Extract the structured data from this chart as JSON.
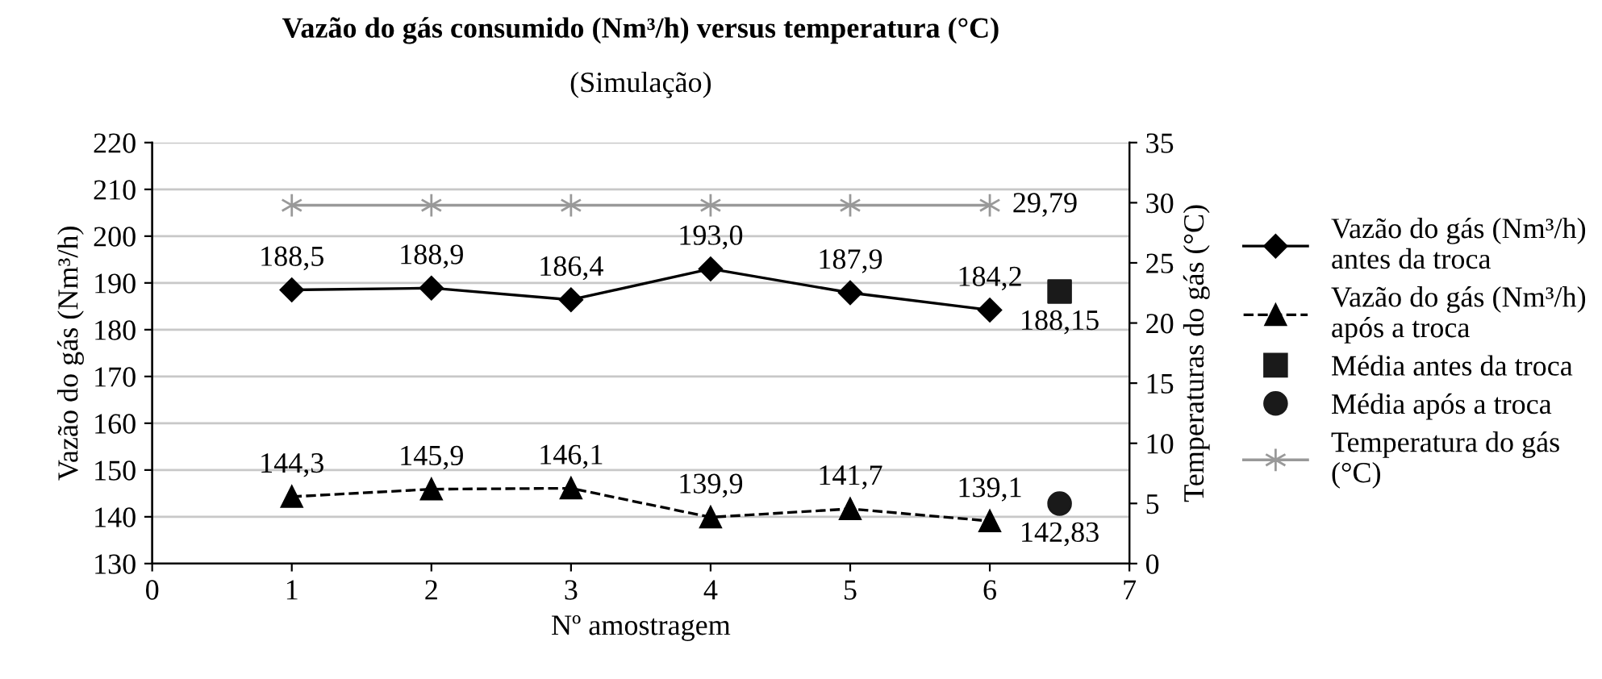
{
  "chart_data": {
    "type": "line",
    "title": "Vazão do gás consumido (Nm³/h) versus temperatura (°C)",
    "subtitle": "(Simulação)",
    "xlabel": "Nº amostragem",
    "ylabel": "Vazão do gás (Nm³/h)",
    "y2label": "Temperaturas do gás (°C)",
    "xlim": [
      0,
      7
    ],
    "xticks": [
      0,
      1,
      2,
      3,
      4,
      5,
      6,
      7
    ],
    "ylim": [
      130,
      220
    ],
    "yticks": [
      130,
      140,
      150,
      160,
      170,
      180,
      190,
      200,
      210,
      220
    ],
    "y2lim": [
      0,
      35
    ],
    "y2ticks": [
      0,
      5,
      10,
      15,
      20,
      25,
      30,
      35
    ],
    "grid": "y",
    "legend": "right",
    "series": [
      {
        "name": "Vazão do gás (Nm³/h) antes da troca",
        "color": "#000000",
        "marker": "diamond",
        "line_style": "solid",
        "x": [
          1,
          2,
          3,
          4,
          5,
          6
        ],
        "values": [
          188.5,
          188.9,
          186.4,
          193.0,
          187.9,
          184.2
        ],
        "value_labels": [
          "188,5",
          "188,9",
          "186,4",
          "193,0",
          "187,9",
          "184,2"
        ]
      },
      {
        "name": "Vazão do gás (Nm³/h) após a troca",
        "color": "#000000",
        "marker": "triangle",
        "line_style": "dashed",
        "x": [
          1,
          2,
          3,
          4,
          5,
          6
        ],
        "values": [
          144.3,
          145.9,
          146.1,
          139.9,
          141.7,
          139.1
        ],
        "value_labels": [
          "144,3",
          "145,9",
          "146,1",
          "139,9",
          "141,7",
          "139,1"
        ]
      },
      {
        "name": "Média antes da troca",
        "type": "scatter",
        "color": "#1a1a1a",
        "marker": "square",
        "x": [
          6.5
        ],
        "values": [
          188.15
        ],
        "value_labels": [
          "188,15"
        ]
      },
      {
        "name": "Média após a troca",
        "type": "scatter",
        "color": "#1a1a1a",
        "marker": "circle",
        "x": [
          6.5
        ],
        "values": [
          142.83
        ],
        "value_labels": [
          "142,83"
        ]
      },
      {
        "name": "Temperatura do gás (°C)",
        "axis": "y2",
        "color": "#999999",
        "marker": "cross",
        "line_style": "solid",
        "x": [
          1,
          2,
          3,
          4,
          5,
          6
        ],
        "values": [
          29.79,
          29.79,
          29.79,
          29.79,
          29.79,
          29.79
        ],
        "value_labels": [
          null,
          null,
          null,
          null,
          null,
          "29,79"
        ]
      }
    ]
  }
}
